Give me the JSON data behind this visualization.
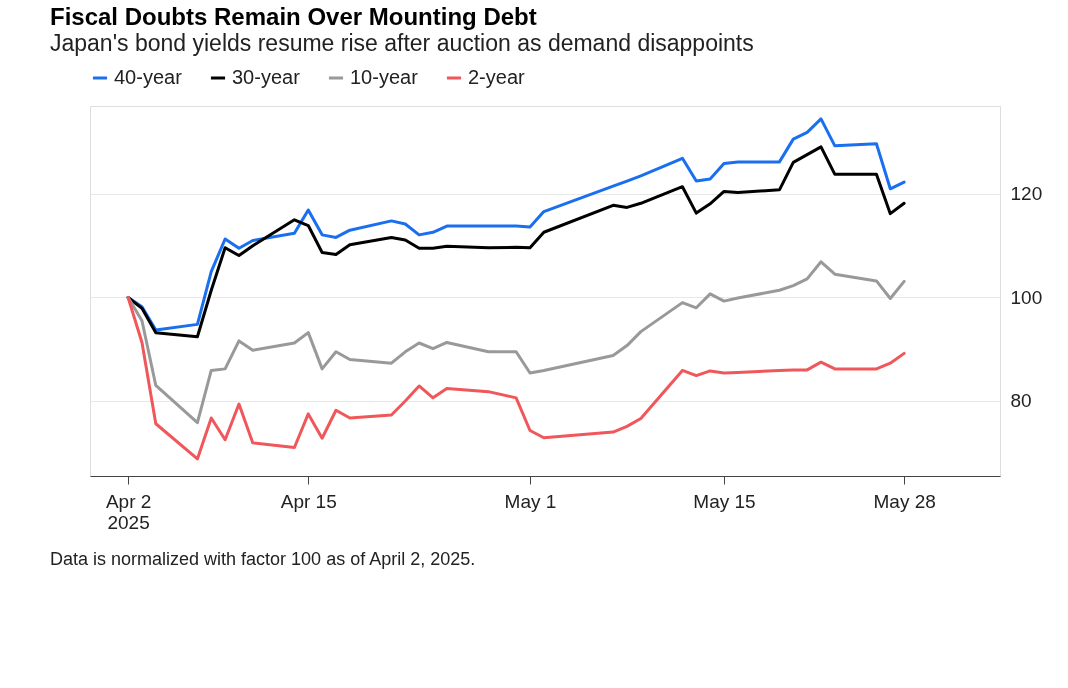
{
  "chart_data": {
    "type": "line",
    "title": "Fiscal Doubts Remain Over Mounting Debt",
    "subtitle": "Japan's bond yields resume rise after auction as demand disappoints",
    "x": [
      "2025-04-02",
      "2025-04-03",
      "2025-04-04",
      "2025-04-07",
      "2025-04-08",
      "2025-04-09",
      "2025-04-10",
      "2025-04-11",
      "2025-04-14",
      "2025-04-15",
      "2025-04-16",
      "2025-04-17",
      "2025-04-18",
      "2025-04-21",
      "2025-04-22",
      "2025-04-23",
      "2025-04-24",
      "2025-04-25",
      "2025-04-28",
      "2025-04-30",
      "2025-05-01",
      "2025-05-02",
      "2025-05-07",
      "2025-05-08",
      "2025-05-09",
      "2025-05-12",
      "2025-05-13",
      "2025-05-14",
      "2025-05-15",
      "2025-05-16",
      "2025-05-19",
      "2025-05-20",
      "2025-05-21",
      "2025-05-22",
      "2025-05-23",
      "2025-05-26",
      "2025-05-27",
      "2025-05-28"
    ],
    "series": [
      {
        "name": "40-year",
        "color": "#1a6ff0",
        "values": [
          100,
          98.2,
          93.7,
          94.8,
          105,
          111.3,
          109.5,
          111,
          112.4,
          116.9,
          112.1,
          111.6,
          113,
          114.8,
          114.2,
          112.1,
          112.6,
          113.8,
          113.8,
          113.8,
          113.6,
          116.6,
          121.5,
          122.5,
          123.5,
          126.9,
          122.5,
          122.9,
          125.9,
          126.2,
          126.2,
          130.6,
          131.9,
          134.5,
          129.3,
          129.7,
          121,
          122.3
        ]
      },
      {
        "name": "30-year",
        "color": "#000000",
        "values": [
          100,
          97.9,
          93.2,
          92.4,
          101.4,
          109.6,
          108.1,
          110,
          115,
          113.9,
          108.7,
          108.3,
          110.2,
          111.6,
          111.1,
          109.5,
          109.5,
          109.9,
          109.6,
          109.7,
          109.6,
          112.6,
          117.8,
          117.4,
          118.2,
          121.4,
          116.3,
          118.1,
          120.5,
          120.3,
          120.8,
          126.1,
          127.6,
          129.1,
          123.8,
          123.8,
          116.2,
          118.2
        ]
      },
      {
        "name": "10-year",
        "color": "#999999",
        "values": [
          100,
          95.5,
          83,
          75.8,
          85.9,
          86.2,
          91.6,
          89.8,
          91.2,
          93.2,
          86.2,
          89.5,
          88,
          87.3,
          89.5,
          91.2,
          90.1,
          91.3,
          89.5,
          89.5,
          85.4,
          85.9,
          88.8,
          90.7,
          93.4,
          99,
          98,
          100.7,
          99.3,
          99.9,
          101.4,
          102.3,
          103.6,
          106.9,
          104.5,
          103.2,
          99.8,
          103.1
        ]
      },
      {
        "name": "2-year",
        "color": "#f0575a",
        "values": [
          100,
          91.3,
          75.6,
          68.8,
          76.7,
          72.5,
          79.4,
          71.9,
          71,
          77.5,
          72.8,
          78.2,
          76.7,
          77.3,
          80,
          82.9,
          80.6,
          82.4,
          81.8,
          80.6,
          74.3,
          72.9,
          74,
          75.1,
          76.6,
          85.9,
          84.9,
          85.8,
          85.4,
          85.5,
          85.9,
          86,
          86,
          87.5,
          86.2,
          86.2,
          87.3,
          89.2
        ]
      }
    ],
    "xlim": [
      "2025-03-30T06:00",
      "2025-06-03T22:00"
    ],
    "xticks": [
      {
        "value": "2025-04-02",
        "label": "Apr 2\n2025"
      },
      {
        "value": "2025-04-15",
        "label": "Apr 15"
      },
      {
        "value": "2025-05-01",
        "label": "May 1"
      },
      {
        "value": "2025-05-15",
        "label": "May 15"
      },
      {
        "value": "2025-05-28",
        "label": "May 28"
      }
    ],
    "ylim": [
      65.5,
      137
    ],
    "yticks": [
      80,
      100,
      120
    ],
    "grid": "y",
    "legend": "top left",
    "annotations": [
      "Data is normalized with factor 100 as of April 2, 2025."
    ]
  }
}
